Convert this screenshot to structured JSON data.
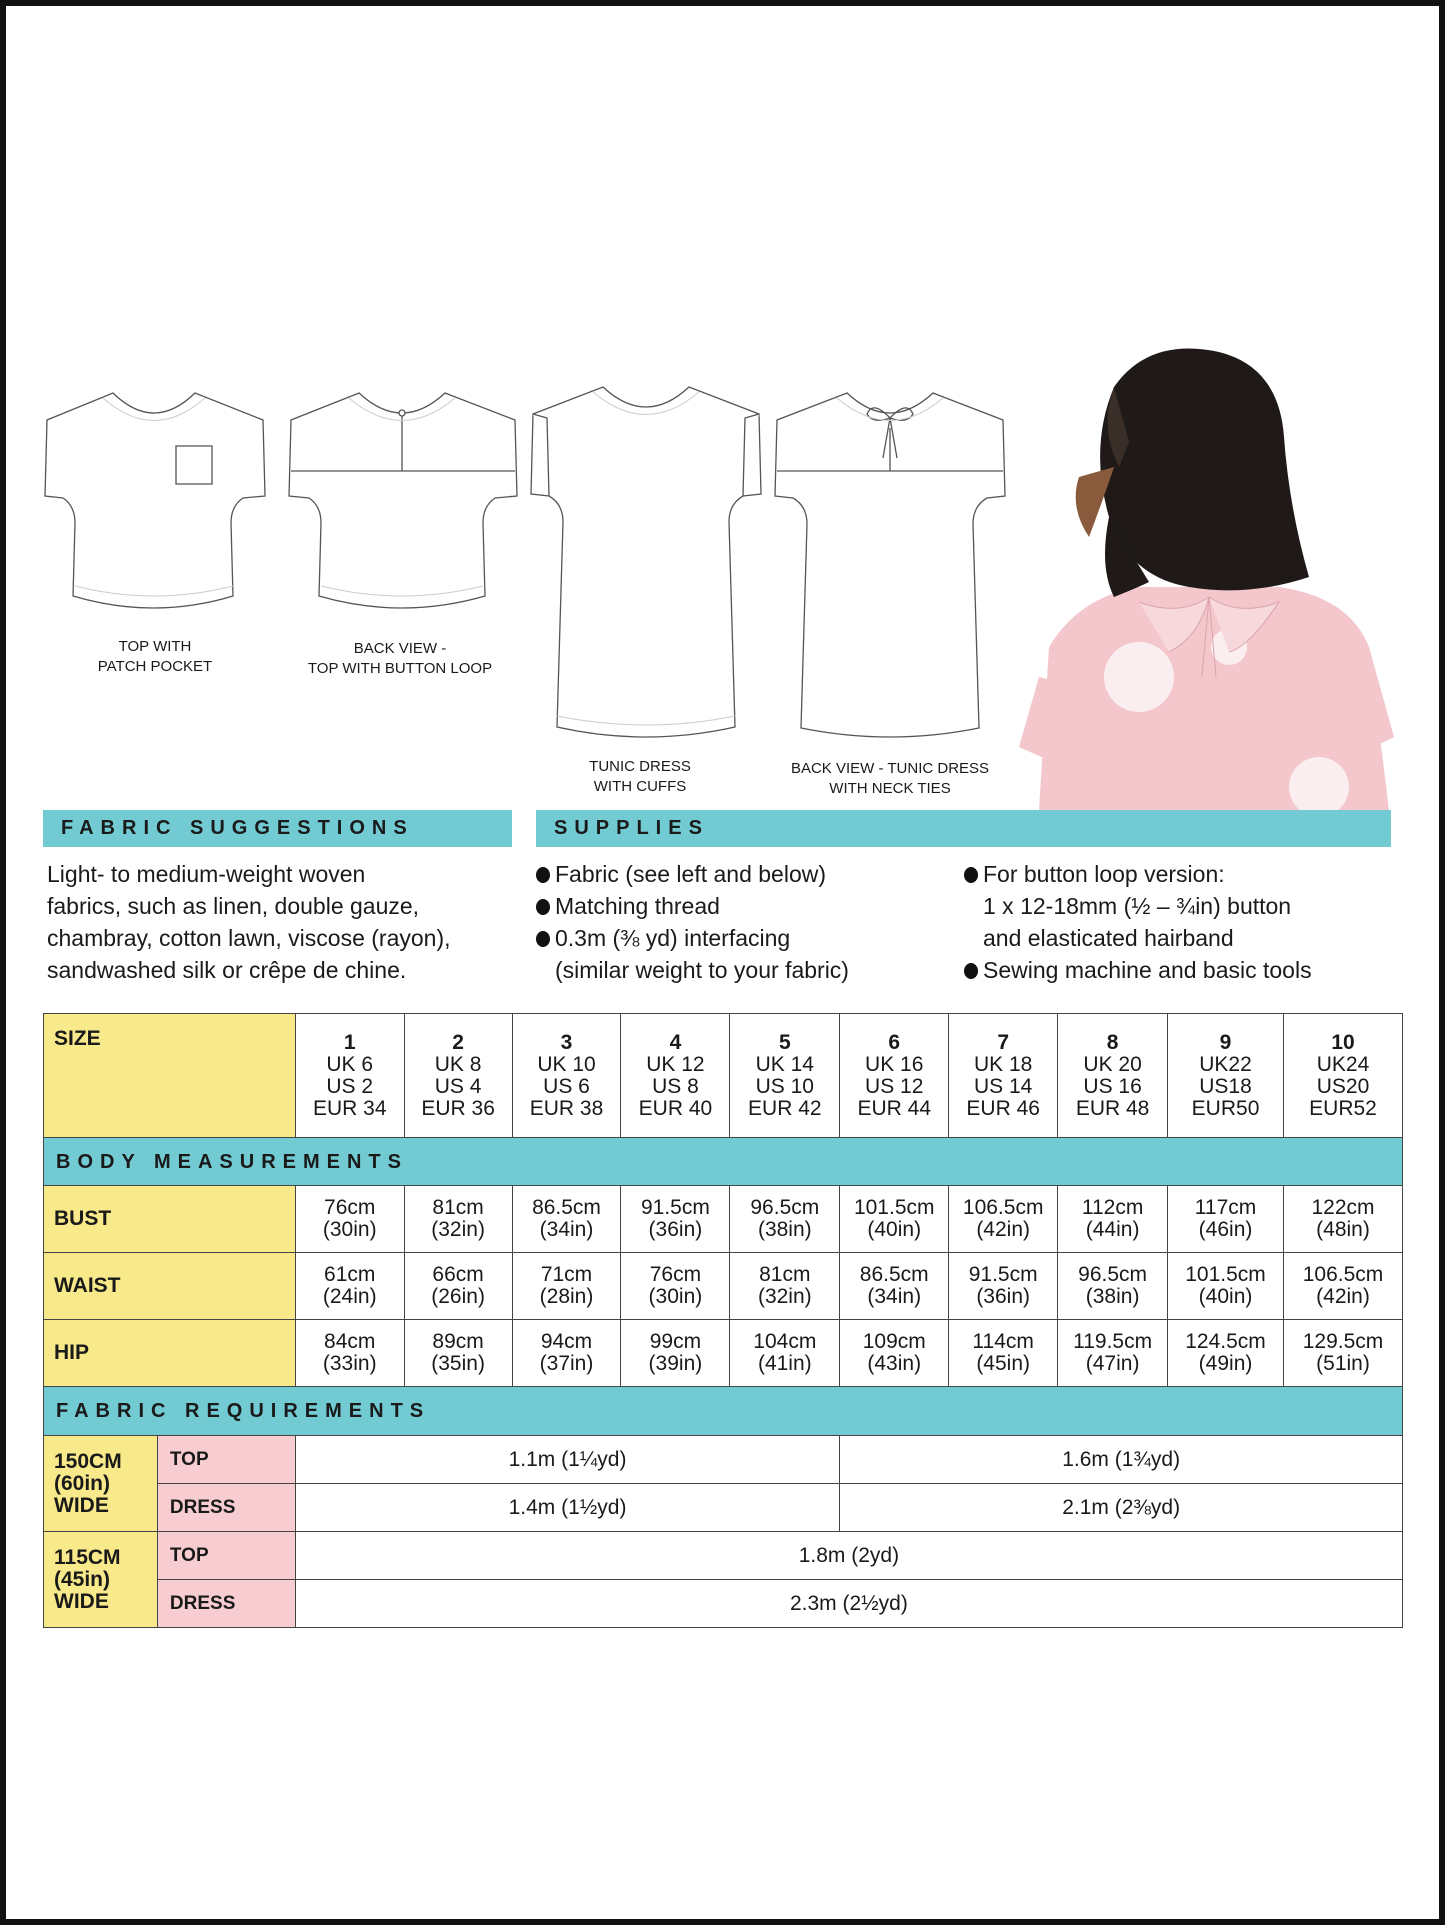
{
  "garments": [
    {
      "label_line1": "TOP WITH",
      "label_line2": "PATCH POCKET"
    },
    {
      "label_line1": "BACK VIEW -",
      "label_line2": "TOP WITH BUTTON LOOP"
    },
    {
      "label_line1": "TUNIC DRESS",
      "label_line2": "WITH CUFFS"
    },
    {
      "label_line1": "BACK VIEW - TUNIC DRESS",
      "label_line2": "WITH NECK TIES"
    }
  ],
  "fabric_suggestions": {
    "title": "FABRIC SUGGESTIONS",
    "lines": [
      "Light- to medium-weight woven",
      "fabrics, such as linen, double gauze,",
      "chambray, cotton lawn, viscose (rayon),",
      "sandwashed silk or crêpe de chine."
    ]
  },
  "supplies": {
    "title": "SUPPLIES",
    "col1": [
      "Fabric (see left and below)",
      "Matching thread",
      "0.3m (⅜ yd) interfacing",
      "(similar weight to your fabric)"
    ],
    "col2": [
      "For button loop version:",
      "1 x 12-18mm (½ – ¾in) button",
      "and elasticated hairband",
      "Sewing machine and basic tools"
    ]
  },
  "size_table": {
    "size_label": "SIZE",
    "sizes": [
      {
        "n": "1",
        "uk": "UK 6",
        "us": "US 2",
        "eur": "EUR 34"
      },
      {
        "n": "2",
        "uk": "UK 8",
        "us": "US 4",
        "eur": "EUR 36"
      },
      {
        "n": "3",
        "uk": "UK 10",
        "us": "US 6",
        "eur": "EUR 38"
      },
      {
        "n": "4",
        "uk": "UK 12",
        "us": "US 8",
        "eur": "EUR 40"
      },
      {
        "n": "5",
        "uk": "UK 14",
        "us": "US 10",
        "eur": "EUR 42"
      },
      {
        "n": "6",
        "uk": "UK 16",
        "us": "US 12",
        "eur": "EUR 44"
      },
      {
        "n": "7",
        "uk": "UK 18",
        "us": "US 14",
        "eur": "EUR 46"
      },
      {
        "n": "8",
        "uk": "UK 20",
        "us": "US 16",
        "eur": "EUR 48"
      },
      {
        "n": "9",
        "uk": "UK22",
        "us": "US18",
        "eur": "EUR50"
      },
      {
        "n": "10",
        "uk": "UK24",
        "us": "US20",
        "eur": "EUR52"
      }
    ],
    "body_title": "BODY MEASUREMENTS",
    "measurements": [
      {
        "label": "BUST",
        "cm": [
          "76cm",
          "81cm",
          "86.5cm",
          "91.5cm",
          "96.5cm",
          "101.5cm",
          "106.5cm",
          "112cm",
          "117cm",
          "122cm"
        ],
        "in": [
          "(30in)",
          "(32in)",
          "(34in)",
          "(36in)",
          "(38in)",
          "(40in)",
          "(42in)",
          "(44in)",
          "(46in)",
          "(48in)"
        ]
      },
      {
        "label": "WAIST",
        "cm": [
          "61cm",
          "66cm",
          "71cm",
          "76cm",
          "81cm",
          "86.5cm",
          "91.5cm",
          "96.5cm",
          "101.5cm",
          "106.5cm"
        ],
        "in": [
          "(24in)",
          "(26in)",
          "(28in)",
          "(30in)",
          "(32in)",
          "(34in)",
          "(36in)",
          "(38in)",
          "(40in)",
          "(42in)"
        ]
      },
      {
        "label": "HIP",
        "cm": [
          "84cm",
          "89cm",
          "94cm",
          "99cm",
          "104cm",
          "109cm",
          "114cm",
          "119.5cm",
          "124.5cm",
          "129.5cm"
        ],
        "in": [
          "(33in)",
          "(35in)",
          "(37in)",
          "(39in)",
          "(41in)",
          "(43in)",
          "(45in)",
          "(47in)",
          "(49in)",
          "(51in)"
        ]
      }
    ],
    "fabric_title": "FABRIC REQUIREMENTS",
    "fabric": [
      {
        "width": [
          "150CM",
          "(60in)",
          "WIDE"
        ],
        "rows": [
          {
            "type": "TOP",
            "values": [
              "1.1m (1¼yd)",
              "1.6m (1¾yd)"
            ]
          },
          {
            "type": "DRESS",
            "values": [
              "1.4m (1½yd)",
              "2.1m (2⅜yd)"
            ]
          }
        ]
      },
      {
        "width": [
          "115CM",
          "(45in)",
          "WIDE"
        ],
        "rows": [
          {
            "type": "TOP",
            "values": [
              "1.8m (2yd)"
            ]
          },
          {
            "type": "DRESS",
            "values": [
              "2.3m (2½yd)"
            ]
          }
        ]
      }
    ]
  },
  "colors": {
    "teal": "#72CBD3",
    "yellow": "#F8E98A",
    "pink": "#F8CDD2"
  }
}
